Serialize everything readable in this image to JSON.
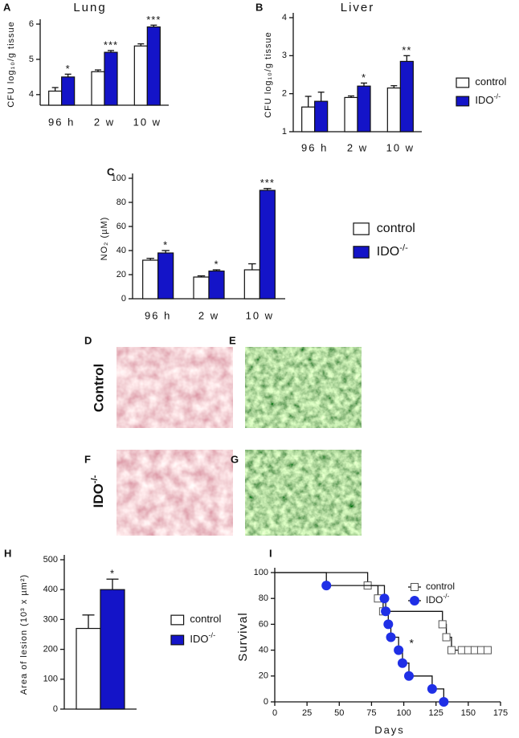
{
  "chart_data": [
    {
      "type": "bar",
      "panel": "A",
      "title": "Lung",
      "ylabel": "CFU log₁₀/g tissue",
      "categories": [
        "96 h",
        "2 w",
        "10 w"
      ],
      "series": [
        {
          "color": "#ffffff",
          "values": [
            4.1,
            4.65,
            5.38
          ],
          "errors": [
            0.1,
            0.05,
            0.06
          ]
        },
        {
          "color": "#1414c8",
          "values": [
            4.5,
            5.2,
            5.92
          ],
          "errors": [
            0.08,
            0.05,
            0.05
          ]
        }
      ],
      "annotations": [
        "*",
        "***",
        "***"
      ],
      "ylim": [
        3.7,
        6
      ],
      "yticks": [
        4,
        5,
        6
      ]
    },
    {
      "type": "bar",
      "panel": "B",
      "title": "Liver",
      "ylabel": "CFU log₁₀/g tissue",
      "categories": [
        "96 h",
        "2 w",
        "10 w"
      ],
      "series": [
        {
          "name": "control",
          "color": "#ffffff",
          "values": [
            1.65,
            1.9,
            2.15
          ],
          "errors": [
            0.28,
            0.04,
            0.06
          ]
        },
        {
          "name": "IDO",
          "name_sup": "-/-",
          "color": "#1414c8",
          "values": [
            1.8,
            2.2,
            2.85
          ],
          "errors": [
            0.24,
            0.08,
            0.15
          ]
        }
      ],
      "annotations": [
        null,
        "*",
        "**"
      ],
      "ylim": [
        1,
        4
      ],
      "yticks": [
        1,
        2,
        3,
        4
      ],
      "legend": "right"
    },
    {
      "type": "bar",
      "panel": "C",
      "ylabel": "NO₂ (µM)",
      "categories": [
        "96 h",
        "2 w",
        "10 w"
      ],
      "series": [
        {
          "name": "control",
          "color": "#ffffff",
          "values": [
            32,
            18,
            24
          ],
          "errors": [
            1.5,
            1,
            5
          ]
        },
        {
          "name": "IDO",
          "name_sup": "-/-",
          "color": "#1414c8",
          "values": [
            38,
            23,
            90
          ],
          "errors": [
            2,
            1,
            1.5
          ]
        }
      ],
      "annotations": [
        "*",
        "*",
        "***"
      ],
      "ylim": [
        0,
        100
      ],
      "yticks": [
        0,
        20,
        40,
        60,
        80,
        100
      ],
      "legend": "right"
    },
    {
      "type": "bar",
      "panel": "H",
      "ylabel": "Area of lesion (10³ x µm²)",
      "categories": [
        null
      ],
      "series": [
        {
          "name": "control",
          "color": "#ffffff",
          "values": [
            270
          ],
          "errors": [
            45
          ]
        },
        {
          "name": "IDO",
          "name_sup": "-/-",
          "color": "#1414c8",
          "values": [
            400
          ],
          "errors": [
            35
          ]
        }
      ],
      "annotations": [
        "*"
      ],
      "ylim": [
        0,
        500
      ],
      "yticks": [
        0,
        100,
        200,
        300,
        400,
        500
      ],
      "legend": "right"
    },
    {
      "type": "step",
      "panel": "I",
      "xlabel": "Days",
      "ylabel": "Survival",
      "series": [
        {
          "name": "control",
          "marker": "square",
          "color": "#ffffff",
          "x": [
            0,
            72,
            80,
            84,
            130,
            133,
            137,
            145,
            150,
            155,
            160,
            165
          ],
          "values": [
            100,
            90,
            80,
            70,
            60,
            50,
            40,
            40,
            40,
            40,
            40,
            40
          ]
        },
        {
          "name": "IDO",
          "name_sup": "-/-",
          "marker": "circle",
          "color": "#1f2fe6",
          "x": [
            0,
            40,
            85,
            86,
            88,
            90,
            96,
            99,
            104,
            122,
            131
          ],
          "values": [
            100,
            90,
            80,
            70,
            60,
            50,
            40,
            30,
            20,
            10,
            0
          ]
        }
      ],
      "annotations": [
        {
          "text": "*",
          "x": 106,
          "y": 45
        }
      ],
      "xlim": [
        0,
        175
      ],
      "xticks": [
        0,
        25,
        50,
        75,
        100,
        125,
        150,
        175
      ],
      "ylim": [
        0,
        100
      ],
      "yticks": [
        0,
        20,
        40,
        60,
        80,
        100
      ],
      "legend": "upper right"
    }
  ],
  "histology": {
    "panels": [
      "D",
      "E",
      "F",
      "G"
    ],
    "rows": [
      {
        "label": "Control"
      },
      {
        "label": "IDO",
        "label_sup": "-/-"
      }
    ]
  }
}
